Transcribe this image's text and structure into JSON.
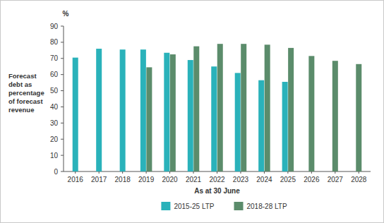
{
  "chart_data": {
    "type": "bar",
    "y_label": "Forecast debt as percentage of forecast revenue",
    "x_label": "As at 30 June",
    "annotations": [
      "%"
    ],
    "categories": [
      "2016",
      "2017",
      "2018",
      "2019",
      "2020",
      "2021",
      "2022",
      "2023",
      "2024",
      "2025",
      "2026",
      "2027",
      "2028"
    ],
    "series": [
      {
        "name": "2015-25 LTP",
        "color": "#2ab2ba",
        "values": [
          70.5,
          76,
          75.5,
          75.5,
          73.5,
          69,
          65,
          61,
          56.5,
          55.5,
          null,
          null,
          null
        ]
      },
      {
        "name": "2018-28 LTP",
        "color": "#5b8c6b",
        "values": [
          null,
          null,
          null,
          64.5,
          72.5,
          77.5,
          79,
          79,
          78.5,
          76.5,
          71.5,
          68.5,
          66.5
        ]
      }
    ],
    "ylim": [
      0,
      90
    ],
    "yticks": [
      0,
      10,
      20,
      30,
      40,
      50,
      60,
      70,
      80,
      90
    ],
    "grid": false,
    "legend": "bottom"
  }
}
